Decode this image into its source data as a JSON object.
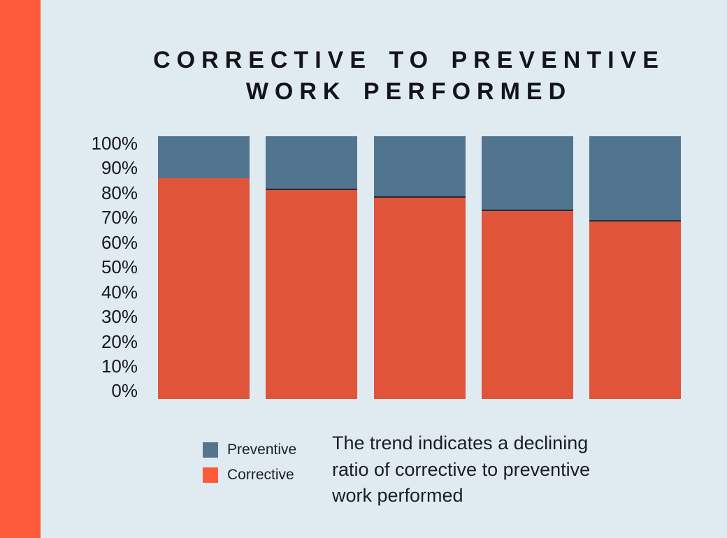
{
  "page": {
    "background": "#E0EAF1",
    "accent_stripe_color": "#FC5A38"
  },
  "header": {
    "title": "CORRECTIVE TO PREVENTIVE WORK PERFORMED",
    "title_lines": [
      "CORRECTIVE TO PREVENTIVE",
      "WORK PERFORMED"
    ]
  },
  "chart_data": {
    "type": "bar",
    "stacked": true,
    "percent_stacked": true,
    "title": "CORRECTIVE TO PREVENTIVE WORK PERFORMED",
    "categories": [
      "",
      "",
      "",
      "",
      ""
    ],
    "series": [
      {
        "name": "Corrective",
        "color": "#E0543A",
        "values": [
          84,
          80,
          77,
          72,
          68
        ]
      },
      {
        "name": "Preventive",
        "color": "#51748F",
        "values": [
          16,
          20,
          23,
          28,
          32
        ]
      }
    ],
    "ylim": [
      0,
      100
    ],
    "y_ticks": [
      "100%",
      "90%",
      "80%",
      "70%",
      "60%",
      "50%",
      "40%",
      "30%",
      "20%",
      "10%",
      "0%"
    ],
    "grid": false,
    "legend_position": "bottom-left",
    "bar_divider_color": "#262B33",
    "bar_divider_on_bars": [
      2,
      3,
      4,
      5
    ]
  },
  "legend": {
    "items": [
      {
        "label": "Preventive",
        "color": "#567490"
      },
      {
        "label": "Corrective",
        "color": "#FC5A38"
      }
    ]
  },
  "caption": {
    "text": "The trend indicates a declining ratio of corrective to preventive work performed",
    "lines": [
      "The trend indicates a declining",
      "ratio of corrective to preventive",
      "work performed"
    ]
  }
}
